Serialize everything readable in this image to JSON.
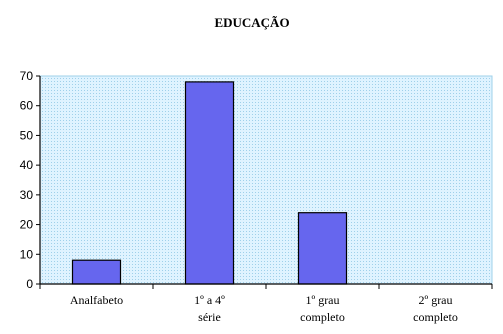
{
  "chart_data": {
    "type": "bar",
    "title": "EDUCAÇÃO",
    "xlabel": "",
    "ylabel": "",
    "categories": [
      [
        "Analfabeto"
      ],
      [
        "1º a 4º",
        "série"
      ],
      [
        "1º grau",
        "completo"
      ],
      [
        "2º grau",
        "completo"
      ]
    ],
    "values": [
      8,
      68,
      24,
      0
    ],
    "ylim": [
      0,
      70
    ],
    "yticks": [
      0,
      10,
      20,
      30,
      40,
      50,
      60,
      70
    ],
    "grid": false,
    "legend": "none",
    "colors": {
      "bar_fill": "#6666ee",
      "bar_stroke": "#000000",
      "plot_bg": "#dff3ff",
      "plot_pattern": "#9fd0ea",
      "axis": "#000000"
    }
  }
}
